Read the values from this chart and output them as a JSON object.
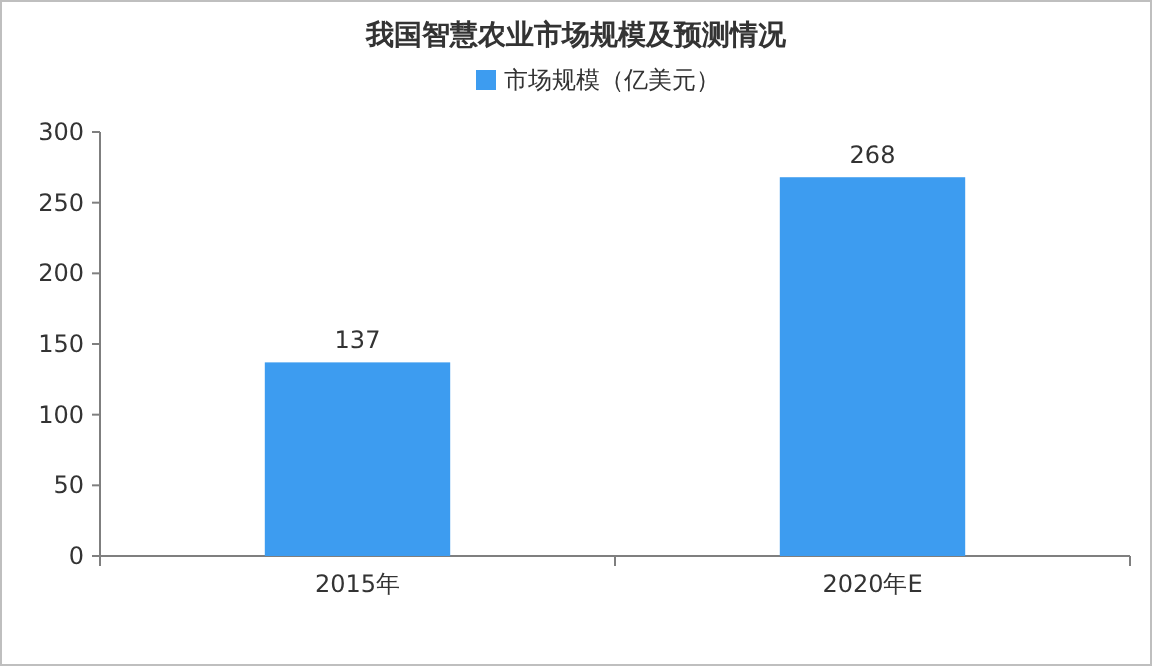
{
  "chart_data": {
    "type": "bar",
    "title": "我国智慧农业市场规模及预测情况",
    "categories": [
      "2015年",
      "2020年E"
    ],
    "series": [
      {
        "name": "市场规模（亿美元）",
        "color": "#3d9cf0",
        "values": [
          137,
          268
        ]
      }
    ],
    "ylim": [
      0,
      300
    ],
    "yticks": [
      0,
      50,
      100,
      150,
      200,
      250,
      300
    ],
    "data_labels": true,
    "legend": "top"
  }
}
